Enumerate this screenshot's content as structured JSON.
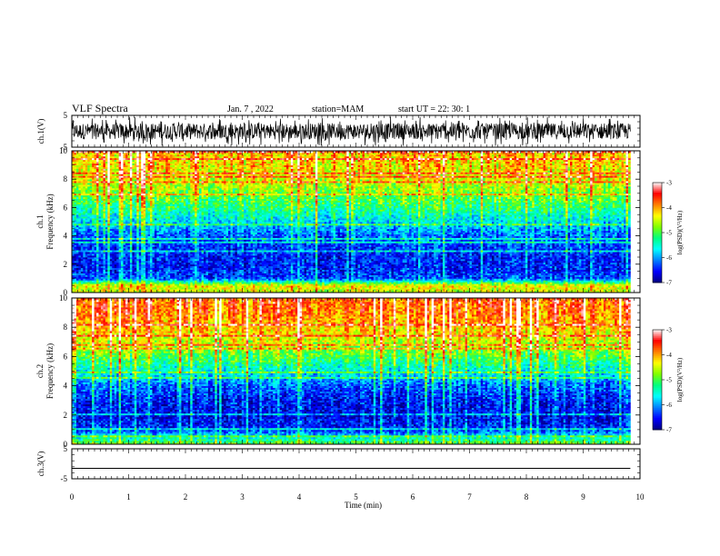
{
  "header": {
    "title": "VLF Spectra",
    "date": "Jan. 7 , 2022",
    "station": "station=MAM",
    "start": "start UT =  22: 30: 1"
  },
  "chart_data": [
    {
      "type": "line",
      "panel": "ch1-waveform",
      "ylabel": "ch.1(V)",
      "y_ticks": [
        "5",
        "-5"
      ],
      "ylim": [
        -5,
        5
      ],
      "xlim": [
        0,
        9.83
      ],
      "description_of_data": "dense black broadband waveform"
    },
    {
      "type": "heatmap",
      "panel": "ch1-spectrogram",
      "ylabel": "Frequency (kHz)",
      "channel_label": "ch.1",
      "y_ticks": [
        "0",
        "2",
        "4",
        "6",
        "8",
        "10"
      ],
      "ylim": [
        0,
        10
      ],
      "xlim": [
        0,
        9.83
      ],
      "colorbar": {
        "label": "log(PSD)(V²/Hz)",
        "ticks": [
          "-3",
          "-4",
          "-5",
          "-6",
          "-7"
        ],
        "range": [
          -7,
          -3
        ]
      },
      "mean_level_by_freq_khz": {
        "f": [
          0,
          0.5,
          1,
          2,
          3,
          4,
          5,
          6,
          7,
          8,
          9,
          10
        ],
        "level": [
          -4.6,
          -4.3,
          -6.3,
          -6.5,
          -6.4,
          -6.2,
          -5.7,
          -5.2,
          -4.8,
          -4.4,
          -4.2,
          -4.1
        ]
      }
    },
    {
      "type": "heatmap",
      "panel": "ch2-spectrogram",
      "ylabel": "Frequency (kHz)",
      "channel_label": "ch.2",
      "y_ticks": [
        "0",
        "2",
        "4",
        "6",
        "8",
        "10"
      ],
      "ylim": [
        0,
        10
      ],
      "xlim": [
        0,
        9.83
      ],
      "colorbar": {
        "label": "log(PSD)(V²/Hz)",
        "ticks": [
          "-3",
          "-4",
          "-5",
          "-6",
          "-7"
        ],
        "range": [
          -7,
          -3
        ]
      },
      "mean_level_by_freq_khz": {
        "f": [
          0,
          0.5,
          1,
          2,
          3,
          4,
          5,
          6,
          7,
          8,
          9,
          10
        ],
        "level": [
          -4.8,
          -5.6,
          -6.4,
          -6.6,
          -6.5,
          -6.2,
          -5.6,
          -5.0,
          -4.5,
          -4.1,
          -3.8,
          -3.7
        ]
      }
    },
    {
      "type": "line",
      "panel": "ch3-waveform",
      "ylabel": "ch.3(V)",
      "y_ticks": [
        "5",
        "-5"
      ],
      "ylim": [
        -5,
        5
      ],
      "xlim": [
        0,
        9.83
      ],
      "x": [
        0,
        9.83
      ],
      "y": [
        -1.5,
        -1.5
      ]
    }
  ],
  "x_axis": {
    "label": "Time (min)",
    "ticks": [
      "0",
      "1",
      "2",
      "3",
      "4",
      "5",
      "6",
      "7",
      "8",
      "9",
      "10"
    ],
    "range": [
      0,
      10
    ]
  },
  "colors": {
    "colormap": [
      "#000080",
      "#0000ff",
      "#0080ff",
      "#00ffff",
      "#00ff80",
      "#80ff00",
      "#ffff00",
      "#ff8000",
      "#ff0000",
      "#ffffff"
    ]
  }
}
